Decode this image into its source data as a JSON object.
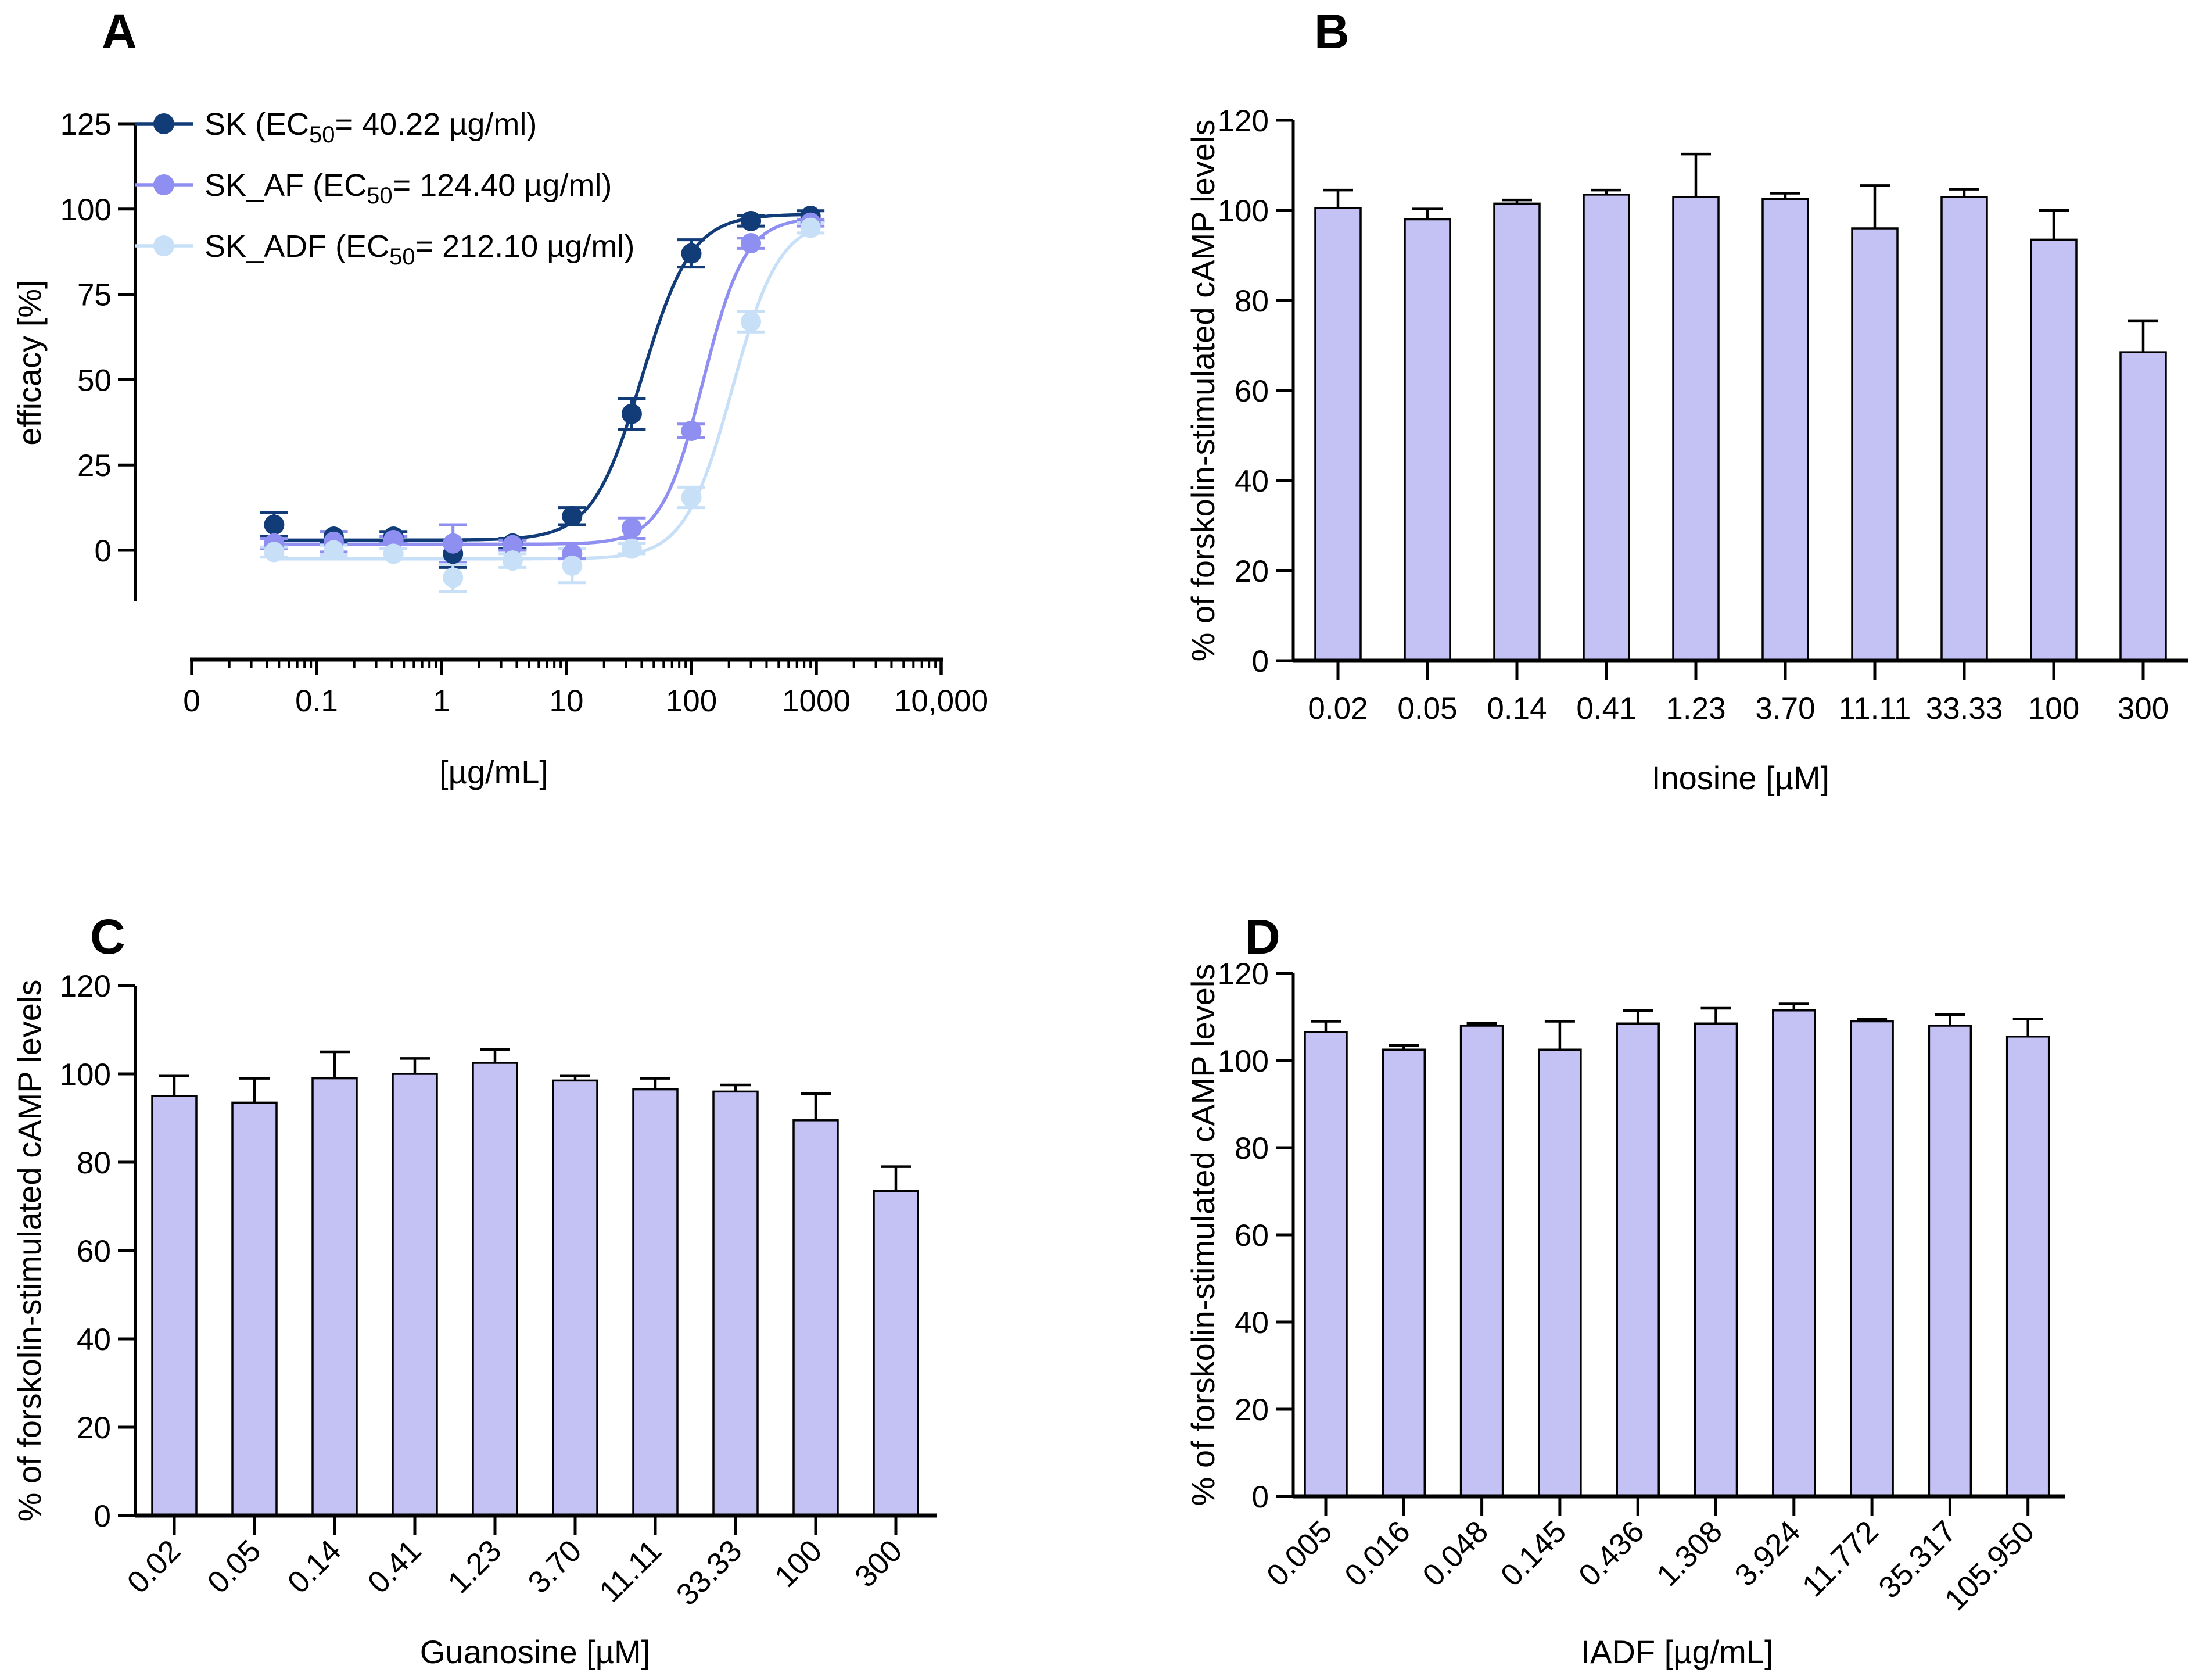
{
  "panels": [
    {
      "letter": "A"
    },
    {
      "letter": "B"
    },
    {
      "letter": "C"
    },
    {
      "letter": "D"
    }
  ],
  "colors": {
    "background": "#ffffff",
    "axis": "#000000",
    "bar_fill": "#c4c2f5",
    "bar_stroke": "#000000",
    "series_sk": "#113c78",
    "series_sk_af": "#8f8ff2",
    "series_sk_adf": "#c7e0f8"
  },
  "chart_data": [
    {
      "type": "line",
      "panel": "A",
      "title": "",
      "xlabel": "[µg/mL]",
      "ylabel": "efficacy [%]",
      "xscale": "log",
      "xtick_labels": [
        "0",
        "0.1",
        "1",
        "10",
        "100",
        "1000",
        "10,000"
      ],
      "ytick_values": [
        0,
        25,
        50,
        75,
        100,
        125
      ],
      "ylim": [
        -15,
        125
      ],
      "legend_position": "top-left-inside",
      "x": [
        0.0457,
        0.137,
        0.412,
        1.235,
        3.704,
        11.11,
        33.33,
        100,
        300,
        900
      ],
      "series": [
        {
          "name": "SK",
          "label_prefix": "SK (EC",
          "label_sub": "50",
          "label_suffix": "= 40.22 µg/ml)",
          "ec50_ug_ml": 40.22,
          "color": "#113c78",
          "values": [
            7.5,
            4,
            4,
            -1,
            2,
            10,
            40,
            87,
            96.5,
            98
          ],
          "errors": [
            3.5,
            1.5,
            1.5,
            4,
            1.5,
            2.5,
            4.5,
            4,
            1.5,
            1.5
          ],
          "fit": {
            "bottom": 3,
            "top": 98.5,
            "ec50": 40.22,
            "hill": 2.2
          }
        },
        {
          "name": "SK_AF",
          "label_prefix": "SK_AF (EC",
          "label_sub": "50",
          "label_suffix": "= 124.40 µg/ml)",
          "ec50_ug_ml": 124.4,
          "color": "#8f8ff2",
          "values": [
            2,
            2.5,
            3,
            2,
            1.5,
            -1,
            6.5,
            35,
            90,
            96
          ],
          "errors": [
            1.5,
            3,
            1,
            5.5,
            1.5,
            1.5,
            3,
            2,
            1.5,
            1
          ],
          "fit": {
            "bottom": 1.8,
            "top": 97.5,
            "ec50": 124.4,
            "hill": 2.6
          }
        },
        {
          "name": "SK_ADF",
          "label_prefix": "SK_ADF (EC",
          "label_sub": "50",
          "label_suffix": "= 212.10 µg/ml)",
          "ec50_ug_ml": 212.1,
          "color": "#c7e0f8",
          "values": [
            -0.5,
            0,
            -1,
            -8,
            -3,
            -4.5,
            0.5,
            15.5,
            67,
            94.5
          ],
          "errors": [
            1.5,
            1.5,
            1.5,
            4,
            2,
            5,
            1.5,
            3,
            3,
            1.5
          ],
          "fit": {
            "bottom": -2.5,
            "top": 97,
            "ec50": 212.1,
            "hill": 2.3
          }
        }
      ]
    },
    {
      "type": "bar",
      "panel": "B",
      "xlabel": "Inosine [µM]",
      "ylabel": "% of forskolin-stimulated cAMP levels",
      "categories": [
        "0.02",
        "0.05",
        "0.14",
        "0.41",
        "1.23",
        "3.70",
        "11.11",
        "33.33",
        "100",
        "300"
      ],
      "values": [
        100.5,
        98,
        101.5,
        103.5,
        103,
        102.5,
        96,
        103,
        93.5,
        68.5
      ],
      "errors": [
        4,
        2.3,
        0.8,
        1,
        9.5,
        1.3,
        9.5,
        1.7,
        6.5,
        7
      ],
      "ytick_values": [
        0,
        20,
        40,
        60,
        80,
        100,
        120
      ],
      "ylim": [
        0,
        120
      ],
      "xtick_rotation": 0
    },
    {
      "type": "bar",
      "panel": "C",
      "xlabel": "Guanosine [µM]",
      "ylabel": "% of forskolin-stimulated cAMP levels",
      "categories": [
        "0.02",
        "0.05",
        "0.14",
        "0.41",
        "1.23",
        "3.70",
        "11.11",
        "33.33",
        "100",
        "300"
      ],
      "values": [
        95,
        93.5,
        99,
        100,
        102.5,
        98.5,
        96.5,
        96,
        89.5,
        73.5
      ],
      "errors": [
        4.5,
        5.5,
        6,
        3.5,
        3,
        1,
        2.5,
        1.5,
        6,
        5.5
      ],
      "ytick_values": [
        0,
        20,
        40,
        60,
        80,
        100,
        120
      ],
      "ylim": [
        0,
        120
      ],
      "xtick_rotation": 45
    },
    {
      "type": "bar",
      "panel": "D",
      "xlabel": "IADF [µg/mL]",
      "ylabel": "% of forskolin-stimulated cAMP levels",
      "categories": [
        "0.005",
        "0.016",
        "0.048",
        "0.145",
        "0.436",
        "1.308",
        "3.924",
        "11.772",
        "35.317",
        "105.950"
      ],
      "values": [
        106.5,
        102.5,
        108,
        102.5,
        108.5,
        108.5,
        111.5,
        109,
        108,
        105.5
      ],
      "errors": [
        2.5,
        1,
        0.5,
        6.5,
        3,
        3.5,
        1.5,
        0.5,
        2.5,
        4
      ],
      "ytick_values": [
        0,
        20,
        40,
        60,
        80,
        100,
        120
      ],
      "ylim": [
        0,
        120
      ],
      "xtick_rotation": 45
    }
  ]
}
